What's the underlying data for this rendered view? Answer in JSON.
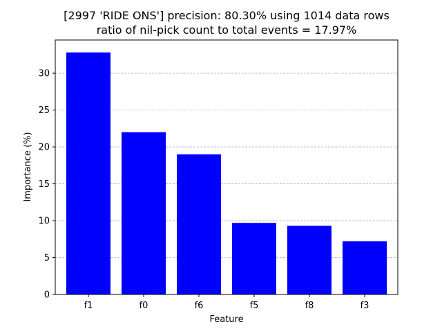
{
  "chart_data": {
    "type": "bar",
    "title_line1": "[2997 'RIDE ONS'] precision: 80.30% using 1014 data rows",
    "title_line2": "ratio of nil-pick count to total events = 17.97%",
    "xlabel": "Feature",
    "ylabel": "Importance (%)",
    "categories": [
      "f1",
      "f0",
      "f6",
      "f5",
      "f8",
      "f3"
    ],
    "values": [
      32.8,
      22.0,
      19.0,
      9.7,
      9.3,
      7.2
    ],
    "ylim": [
      0,
      34.5
    ],
    "yticks": [
      0,
      5,
      10,
      15,
      20,
      25,
      30
    ],
    "grid": "y-dashed",
    "bar_color": "#0000ff"
  }
}
